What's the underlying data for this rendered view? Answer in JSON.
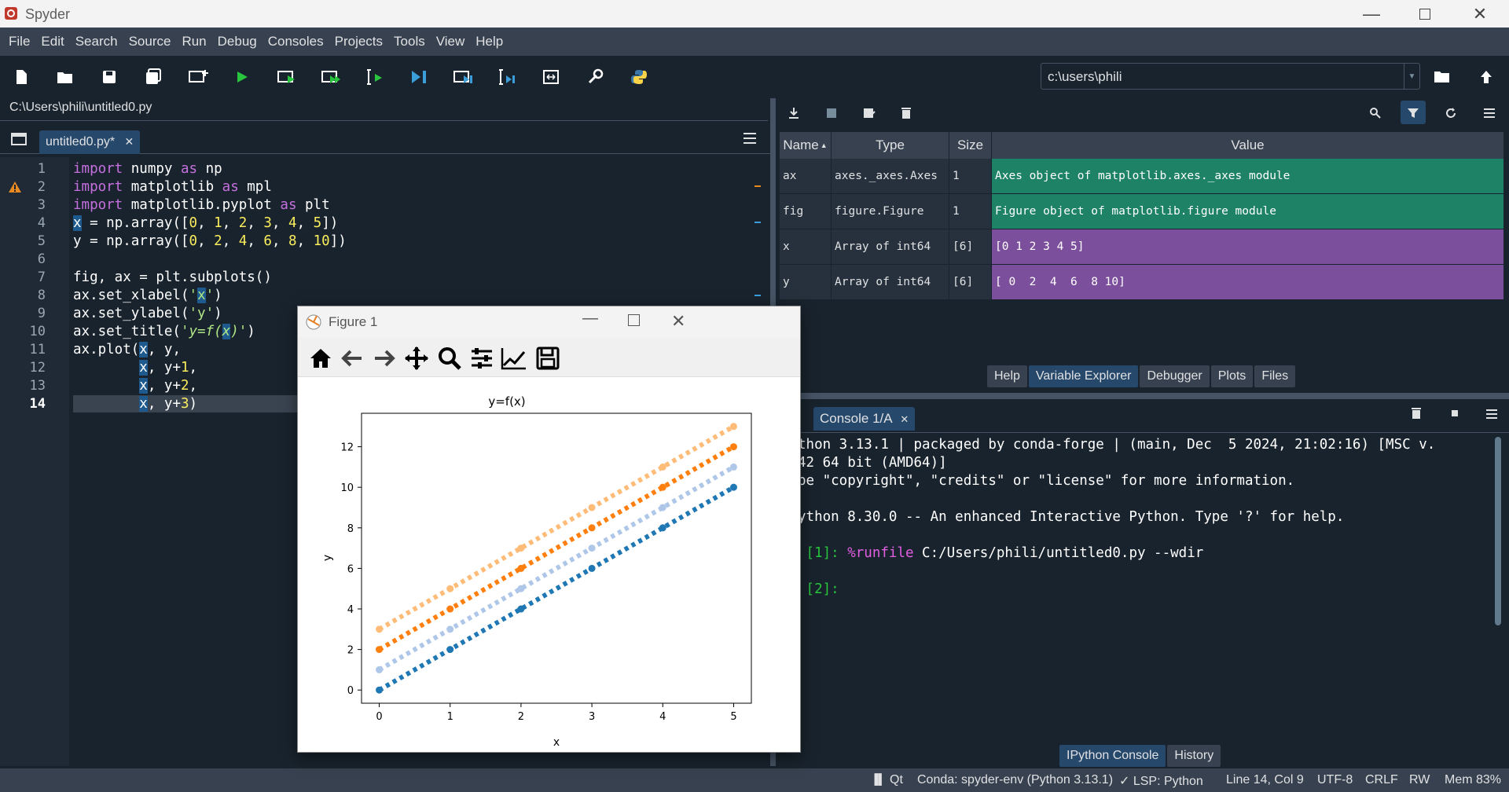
{
  "window": {
    "title": "Spyder"
  },
  "menu": [
    "File",
    "Edit",
    "Search",
    "Source",
    "Run",
    "Debug",
    "Consoles",
    "Projects",
    "Tools",
    "View",
    "Help"
  ],
  "toolbar": {
    "icons": [
      "new-file-icon",
      "open-file-icon",
      "save-icon",
      "save-all-icon",
      "new-cell-icon",
      "run-icon",
      "run-cell-icon",
      "run-cell-advance-icon",
      "run-selection-icon",
      "debug-icon",
      "debug-cell-icon",
      "debug-selection-icon",
      "maximize-pane-icon",
      "preferences-icon",
      "python-path-icon"
    ],
    "working_dir": "c:\\users\\phili"
  },
  "editor": {
    "filepath": "C:\\Users\\phili\\untitled0.py",
    "tab_label": "untitled0.py*",
    "line_numbers": [
      "1",
      "2",
      "3",
      "4",
      "5",
      "6",
      "7",
      "8",
      "9",
      "10",
      "11",
      "12",
      "13",
      "14"
    ],
    "current_line": "14"
  },
  "variables": {
    "headers": [
      "Name",
      "Type",
      "Size",
      "Value"
    ],
    "rows": [
      {
        "name": "ax",
        "type": "axes._axes.Axes",
        "size": "1",
        "value": "Axes object of matplotlib.axes._axes module",
        "color": "#1e8266"
      },
      {
        "name": "fig",
        "type": "figure.Figure",
        "size": "1",
        "value": "Figure object of matplotlib.figure module",
        "color": "#1e8266"
      },
      {
        "name": "x",
        "type": "Array of int64",
        "size": "[6]",
        "value": "[0 1 2 3 4 5]",
        "color": "#7c4f9c"
      },
      {
        "name": "y",
        "type": "Array of int64",
        "size": "[6]",
        "value": "[ 0  2  4  6  8 10]",
        "color": "#7c4f9c"
      }
    ]
  },
  "top_panel_tabs": [
    "Help",
    "Variable Explorer",
    "Debugger",
    "Plots",
    "Files"
  ],
  "top_panel_active": "Variable Explorer",
  "console": {
    "tab_label": "Console 1/A",
    "lines": [
      "thon 3.13.1 | packaged by conda-forge | (main, Dec  5 2024, 21:02:16) [MSC v.",
      "42 64 bit (AMD64)]",
      "pe \"copyright\", \"credits\" or \"license\" for more information.",
      "",
      "ython 8.30.0 -- An enhanced Interactive Python. Type '?' for help."
    ],
    "prompt1": " [1]: ",
    "cmd_magic": "%runfile",
    "cmd_rest": " C:/Users/phili/untitled0.py --wdir",
    "prompt2": " [2]: "
  },
  "bottom_panel_tabs": [
    "IPython Console",
    "History"
  ],
  "bottom_panel_active": "IPython Console",
  "statusbar": {
    "backend": "Qt",
    "env": "Conda: spyder-env (Python 3.13.1)",
    "lsp": "✓ LSP: Python",
    "position": "Line 14, Col 9",
    "encoding": "UTF-8",
    "eol": "CRLF",
    "perm": "RW",
    "mem": "Mem 83%"
  },
  "figure": {
    "title": "Figure 1",
    "toolbar_icons": [
      "home-icon",
      "back-icon",
      "forward-icon",
      "pan-icon",
      "zoom-icon",
      "configure-subplots-icon",
      "edit-axis-icon",
      "save-figure-icon"
    ]
  },
  "chart_data": {
    "type": "line",
    "title": "y=f(x)",
    "xlabel": "x",
    "ylabel": "y",
    "x": [
      0,
      1,
      2,
      3,
      4,
      5
    ],
    "xticks": [
      "0",
      "1",
      "2",
      "3",
      "4",
      "5"
    ],
    "yticks": [
      "0",
      "2",
      "4",
      "6",
      "8",
      "10",
      "12"
    ],
    "xlim": [
      -0.25,
      5.25
    ],
    "ylim": [
      -0.65,
      13.65
    ],
    "line_style": "dotted",
    "series": [
      {
        "values": [
          0,
          2,
          4,
          6,
          8,
          10
        ],
        "color": "#1f77b4"
      },
      {
        "values": [
          1,
          3,
          5,
          7,
          9,
          11
        ],
        "color": "#aec7e8"
      },
      {
        "values": [
          2,
          4,
          6,
          8,
          10,
          12
        ],
        "color": "#ff7f0e"
      },
      {
        "values": [
          3,
          5,
          7,
          9,
          11,
          13
        ],
        "color": "#ffbb78"
      }
    ]
  }
}
